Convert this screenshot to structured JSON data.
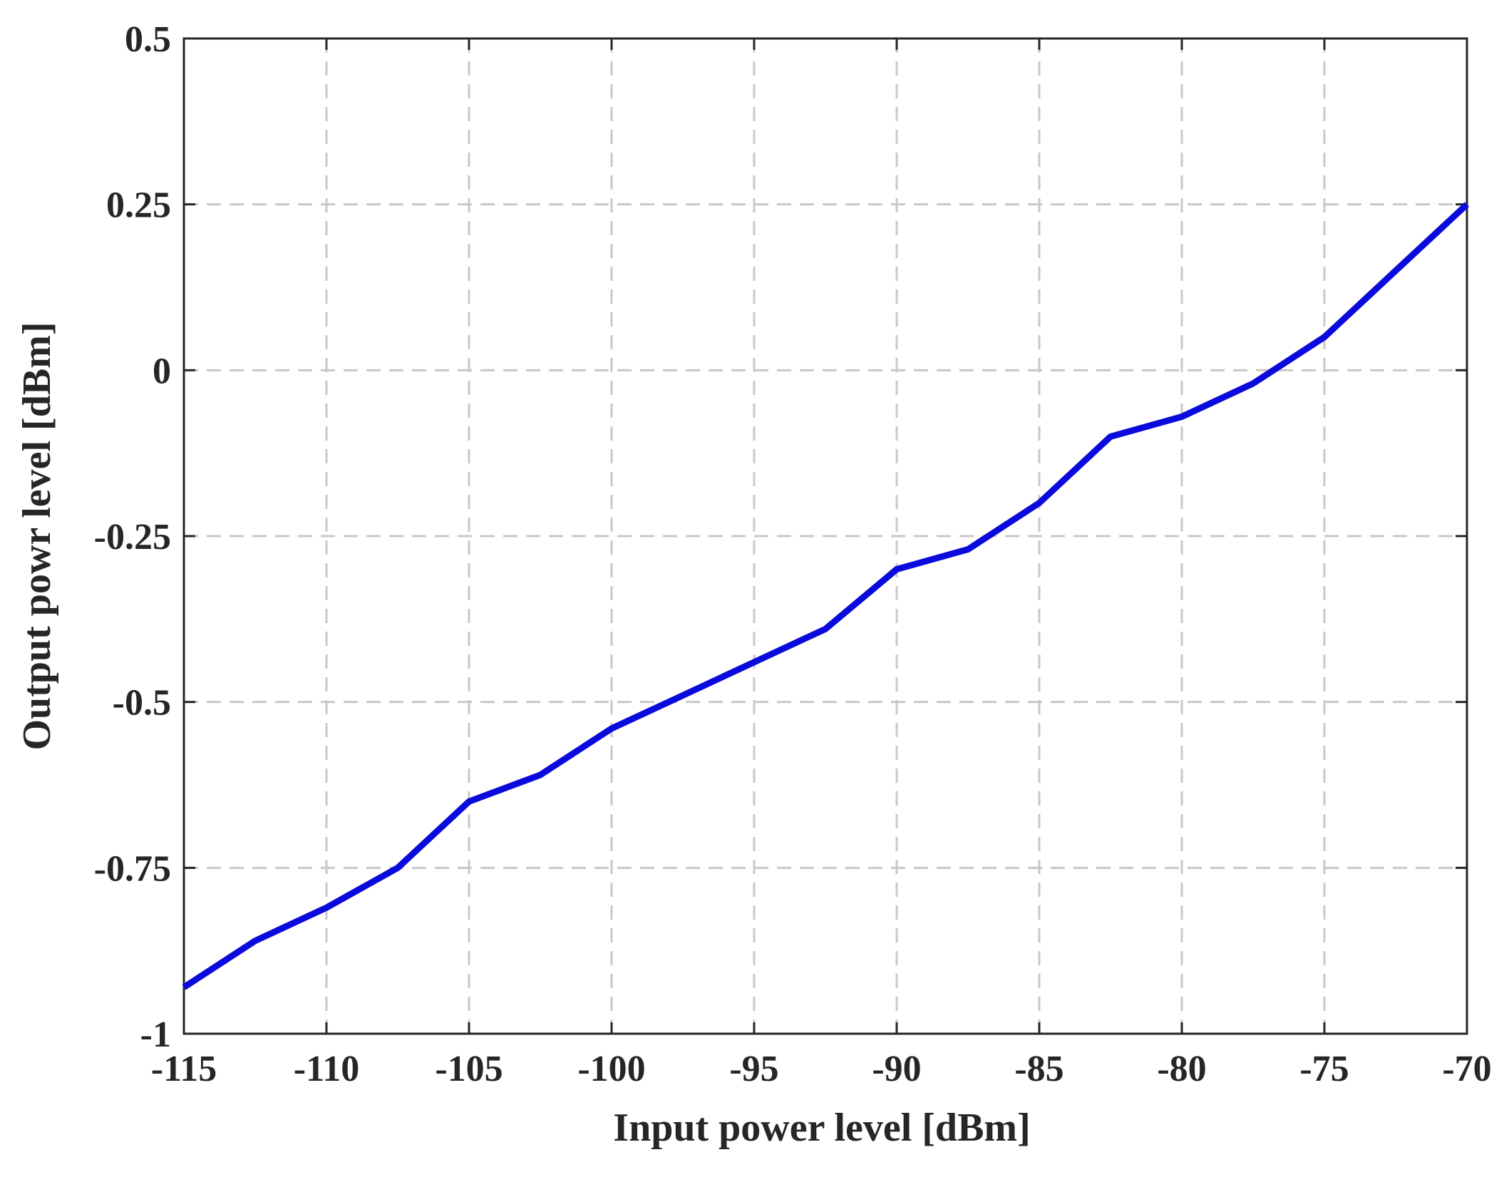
{
  "chart_data": {
    "type": "line",
    "xlabel": "Input power level [dBm]",
    "ylabel": "Output powr level [dBm]",
    "xlim": [
      -115,
      -70
    ],
    "ylim": [
      -1,
      0.5
    ],
    "xticks": [
      -115,
      -110,
      -105,
      -100,
      -95,
      -90,
      -85,
      -80,
      -75,
      -70
    ],
    "xtick_labels": [
      "-115",
      "-110",
      "-105",
      "-100",
      "-95",
      "-90",
      "-85",
      "-80",
      "-75",
      "-70"
    ],
    "yticks": [
      -1,
      -0.75,
      -0.5,
      -0.25,
      0,
      0.25,
      0.5
    ],
    "ytick_labels": [
      "-1",
      "-0.75",
      "-0.5",
      "-0.25",
      "0",
      "0.25",
      "0.5"
    ],
    "grid": true,
    "series": [
      {
        "color": "#0a0adc",
        "x": [
          -115,
          -112.5,
          -110,
          -107.5,
          -105,
          -102.5,
          -100,
          -97.5,
          -95,
          -92.5,
          -90,
          -87.5,
          -85,
          -82.5,
          -80,
          -77.5,
          -75,
          -72.5,
          -70
        ],
        "y": [
          -0.93,
          -0.86,
          -0.81,
          -0.75,
          -0.65,
          -0.61,
          -0.54,
          -0.49,
          -0.44,
          -0.39,
          -0.3,
          -0.27,
          -0.2,
          -0.1,
          -0.07,
          -0.02,
          0.05,
          0.15,
          0.25
        ]
      }
    ]
  }
}
